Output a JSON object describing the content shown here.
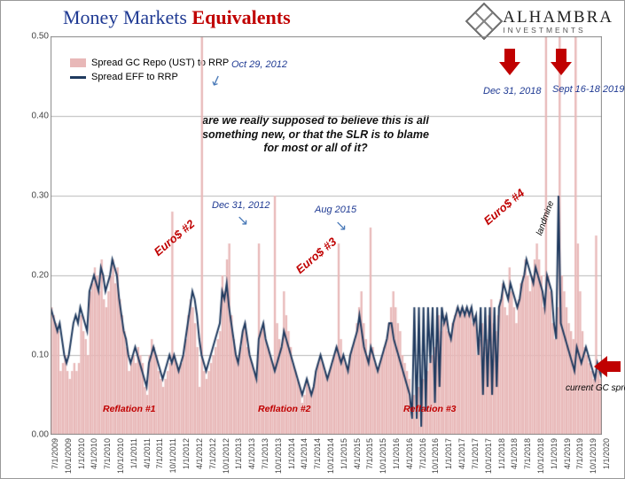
{
  "title": {
    "part1": "Money Markets",
    "part2": "Equivalents"
  },
  "logo": {
    "name": "ALHAMBRA",
    "sub": "INVESTMENTS"
  },
  "legend": {
    "series1": {
      "label": "Spread GC Repo (UST) to RRP",
      "color": "#e8b8b8",
      "type": "bar"
    },
    "series2": {
      "label": "Spread EFF to RRP",
      "color": "#1f3a5f",
      "type": "line"
    }
  },
  "question_text": "are we really supposed to believe this is all something new, or that the SLR is to blame for most or all of it?",
  "chart": {
    "type": "bar+line",
    "background_color": "#ffffff",
    "grid_color": "#b8b8b8",
    "border_color": "#888888",
    "ylim": [
      0.0,
      0.5
    ],
    "ytick_step": 0.1,
    "yticks": [
      "0.00",
      "0.10",
      "0.20",
      "0.30",
      "0.40",
      "0.50"
    ],
    "xticks": [
      "7/1/2009",
      "10/1/2009",
      "1/1/2010",
      "4/1/2010",
      "7/1/2010",
      "10/1/2010",
      "1/1/2011",
      "4/1/2011",
      "7/1/2011",
      "10/1/2011",
      "1/1/2012",
      "4/1/2012",
      "7/1/2012",
      "10/1/2012",
      "1/1/2013",
      "4/1/2013",
      "7/1/2013",
      "10/1/2013",
      "1/1/2014",
      "4/1/2014",
      "7/1/2014",
      "10/1/2014",
      "1/1/2015",
      "4/1/2015",
      "7/1/2015",
      "10/1/2015",
      "1/1/2016",
      "4/1/2016",
      "7/1/2016",
      "10/1/2016",
      "1/1/2017",
      "4/1/2017",
      "7/1/2017",
      "10/1/2017",
      "1/1/2018",
      "4/1/2018",
      "7/1/2018",
      "10/1/2018",
      "1/1/2019",
      "4/1/2019",
      "7/1/2019",
      "10/1/2019",
      "1/1/2020"
    ],
    "bar_color": "#e8b8b8",
    "line_color": "#1f3a5f",
    "line_width": 2
  },
  "annotations": {
    "oct2012": "Oct 29, 2012",
    "dec2012": "Dec 31, 2012",
    "aug2015": "Aug 2015",
    "dec2018": "Dec 31, 2018",
    "sept2019": "Sept 16-18 2019",
    "landmine": "landmine",
    "euro2": "Euro$ #2",
    "euro3": "Euro$ #3",
    "euro4": "Euro$ #4",
    "ref1": "Reflation #1",
    "ref2": "Reflation #2",
    "ref3": "Reflation #3",
    "current": "current GC spread"
  },
  "series_data": {
    "gc_repo": [
      0.16,
      0.15,
      0.14,
      0.13,
      0.08,
      0.09,
      0.1,
      0.08,
      0.07,
      0.08,
      0.09,
      0.08,
      0.09,
      0.15,
      0.13,
      0.12,
      0.1,
      0.18,
      0.19,
      0.21,
      0.2,
      0.18,
      0.22,
      0.17,
      0.16,
      0.18,
      0.2,
      0.22,
      0.19,
      0.21,
      0.17,
      0.15,
      0.13,
      0.11,
      0.08,
      0.09,
      0.1,
      0.09,
      0.11,
      0.1,
      0.09,
      0.06,
      0.05,
      0.1,
      0.12,
      0.11,
      0.1,
      0.08,
      0.07,
      0.06,
      0.07,
      0.08,
      0.09,
      0.28,
      0.1,
      0.09,
      0.08,
      0.09,
      0.1,
      0.12,
      0.15,
      0.17,
      0.16,
      0.14,
      0.11,
      0.06,
      0.5,
      0.08,
      0.07,
      0.08,
      0.09,
      0.1,
      0.11,
      0.12,
      0.13,
      0.2,
      0.18,
      0.22,
      0.24,
      0.15,
      0.12,
      0.1,
      0.09,
      0.11,
      0.13,
      0.14,
      0.11,
      0.1,
      0.09,
      0.08,
      0.07,
      0.24,
      0.13,
      0.14,
      0.12,
      0.11,
      0.1,
      0.09,
      0.3,
      0.14,
      0.12,
      0.11,
      0.18,
      0.15,
      0.13,
      0.11,
      0.09,
      0.08,
      0.07,
      0.06,
      0.04,
      0.05,
      0.07,
      0.06,
      0.05,
      0.06,
      0.08,
      0.09,
      0.1,
      0.09,
      0.08,
      0.07,
      0.08,
      0.09,
      0.1,
      0.11,
      0.24,
      0.12,
      0.1,
      0.09,
      0.08,
      0.1,
      0.11,
      0.12,
      0.14,
      0.16,
      0.18,
      0.14,
      0.12,
      0.1,
      0.26,
      0.11,
      0.09,
      0.08,
      0.09,
      0.1,
      0.11,
      0.12,
      0.14,
      0.16,
      0.18,
      0.16,
      0.14,
      0.13,
      0.1,
      0.09,
      0.08,
      0.07,
      0.02,
      0.05,
      0.02,
      0.06,
      0.01,
      0.07,
      0.03,
      0.08,
      0.09,
      0.1,
      0.11,
      0.12,
      0.15,
      0.13,
      0.14,
      0.15,
      0.13,
      0.12,
      0.14,
      0.15,
      0.16,
      0.15,
      0.16,
      0.15,
      0.16,
      0.15,
      0.16,
      0.14,
      0.15,
      0.1,
      0.12,
      0.14,
      0.11,
      0.12,
      0.15,
      0.17,
      0.14,
      0.13,
      0.15,
      0.17,
      0.19,
      0.16,
      0.15,
      0.21,
      0.18,
      0.16,
      0.14,
      0.17,
      0.19,
      0.2,
      0.22,
      0.2,
      0.18,
      0.2,
      0.22,
      0.24,
      0.22,
      0.2,
      0.16,
      0.5,
      0.2,
      0.18,
      0.14,
      0.12,
      0.16,
      0.5,
      0.2,
      0.18,
      0.16,
      0.14,
      0.13,
      0.12,
      0.5,
      0.24,
      0.18,
      0.13,
      0.11,
      0.1,
      0.09,
      0.08,
      0.07,
      0.25,
      0.08,
      0.07
    ],
    "eff": [
      0.16,
      0.15,
      0.14,
      0.13,
      0.14,
      0.12,
      0.1,
      0.09,
      0.1,
      0.12,
      0.14,
      0.15,
      0.14,
      0.16,
      0.15,
      0.14,
      0.13,
      0.18,
      0.19,
      0.2,
      0.19,
      0.18,
      0.21,
      0.2,
      0.18,
      0.19,
      0.2,
      0.22,
      0.21,
      0.2,
      0.17,
      0.15,
      0.13,
      0.12,
      0.1,
      0.09,
      0.1,
      0.11,
      0.1,
      0.09,
      0.08,
      0.07,
      0.06,
      0.09,
      0.1,
      0.11,
      0.1,
      0.09,
      0.08,
      0.07,
      0.08,
      0.09,
      0.1,
      0.09,
      0.1,
      0.09,
      0.08,
      0.09,
      0.1,
      0.12,
      0.14,
      0.16,
      0.18,
      0.17,
      0.15,
      0.12,
      0.1,
      0.09,
      0.08,
      0.09,
      0.1,
      0.11,
      0.12,
      0.13,
      0.14,
      0.18,
      0.17,
      0.19,
      0.16,
      0.14,
      0.12,
      0.1,
      0.09,
      0.11,
      0.13,
      0.14,
      0.12,
      0.1,
      0.09,
      0.08,
      0.07,
      0.12,
      0.13,
      0.14,
      0.12,
      0.11,
      0.1,
      0.09,
      0.08,
      0.09,
      0.1,
      0.11,
      0.13,
      0.12,
      0.11,
      0.1,
      0.09,
      0.08,
      0.07,
      0.06,
      0.05,
      0.06,
      0.07,
      0.06,
      0.05,
      0.06,
      0.08,
      0.09,
      0.1,
      0.09,
      0.08,
      0.07,
      0.08,
      0.09,
      0.1,
      0.11,
      0.1,
      0.09,
      0.1,
      0.09,
      0.08,
      0.1,
      0.11,
      0.12,
      0.13,
      0.15,
      0.13,
      0.11,
      0.1,
      0.09,
      0.11,
      0.1,
      0.09,
      0.08,
      0.09,
      0.1,
      0.11,
      0.12,
      0.14,
      0.14,
      0.12,
      0.11,
      0.1,
      0.09,
      0.08,
      0.07,
      0.06,
      0.05,
      0.02,
      0.16,
      0.02,
      0.16,
      0.01,
      0.16,
      0.03,
      0.16,
      0.09,
      0.16,
      0.04,
      0.16,
      0.06,
      0.16,
      0.14,
      0.15,
      0.13,
      0.12,
      0.14,
      0.15,
      0.16,
      0.15,
      0.16,
      0.15,
      0.16,
      0.15,
      0.16,
      0.14,
      0.15,
      0.1,
      0.16,
      0.05,
      0.16,
      0.06,
      0.16,
      0.05,
      0.16,
      0.06,
      0.16,
      0.17,
      0.19,
      0.18,
      0.17,
      0.19,
      0.18,
      0.17,
      0.16,
      0.17,
      0.19,
      0.2,
      0.22,
      0.21,
      0.2,
      0.19,
      0.21,
      0.2,
      0.19,
      0.18,
      0.16,
      0.2,
      0.19,
      0.18,
      0.14,
      0.12,
      0.3,
      0.14,
      0.13,
      0.12,
      0.11,
      0.1,
      0.09,
      0.08,
      0.11,
      0.1,
      0.09,
      0.1,
      0.11,
      0.1,
      0.09,
      0.08,
      0.07,
      0.09,
      0.08,
      0.07
    ]
  }
}
